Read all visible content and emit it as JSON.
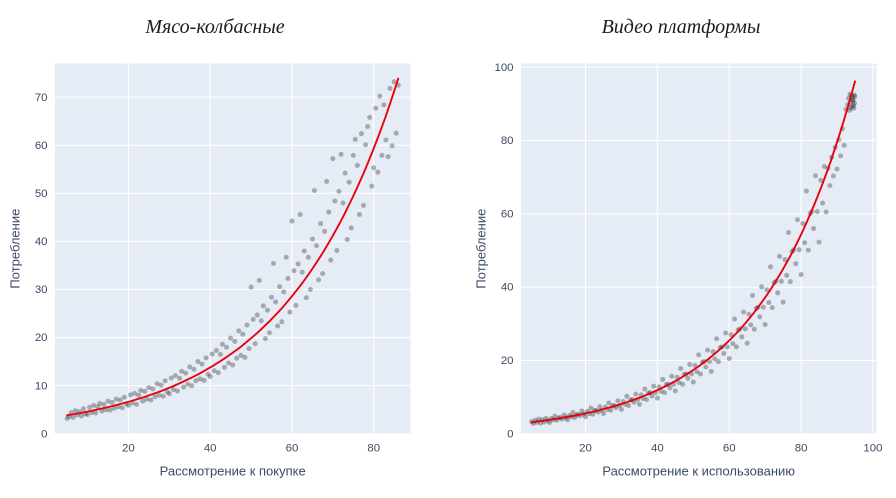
{
  "page": {
    "background": "#ffffff"
  },
  "chart_data": [
    {
      "type": "scatter",
      "title": "Мясо-колбасные",
      "xlabel": "Рассмотрение к покупке",
      "ylabel": "Потребление",
      "plot_bg": "#e5ecf6",
      "grid_color": "#ffffff",
      "tick_color": "#3b4a63",
      "point_color": "rgba(40,40,40,0.35)",
      "fit_color": "#e8000b",
      "x_ticks": [
        20,
        40,
        60,
        80
      ],
      "y_ticks": [
        0,
        10,
        20,
        30,
        40,
        50,
        60,
        70
      ],
      "x_range": [
        2,
        89
      ],
      "y_range": [
        0,
        77
      ],
      "legend": "none",
      "grid": true,
      "fit": {
        "type": "exponential",
        "a": 3.2,
        "b": 0.0365,
        "x_min": 5,
        "x_max": 86
      },
      "points": [
        [
          5,
          3.2
        ],
        [
          5.5,
          3.6
        ],
        [
          6,
          4.4
        ],
        [
          6.5,
          3.4
        ],
        [
          7,
          4.8
        ],
        [
          7.5,
          3.9
        ],
        [
          8,
          4.6
        ],
        [
          8.5,
          3.7
        ],
        [
          9,
          5.2
        ],
        [
          9.5,
          4.1
        ],
        [
          10,
          4.0
        ],
        [
          10.5,
          5.5
        ],
        [
          11,
          4.4
        ],
        [
          11.5,
          5.9
        ],
        [
          12,
          4.3
        ],
        [
          12.5,
          5.6
        ],
        [
          13,
          6.3
        ],
        [
          13.5,
          4.7
        ],
        [
          14,
          6.1
        ],
        [
          14.5,
          5.0
        ],
        [
          15,
          6.8
        ],
        [
          15.5,
          4.9
        ],
        [
          16,
          6.5
        ],
        [
          16.5,
          5.3
        ],
        [
          17,
          7.2
        ],
        [
          17.5,
          5.6
        ],
        [
          18,
          7.0
        ],
        [
          18.5,
          5.4
        ],
        [
          19,
          7.6
        ],
        [
          19.5,
          6.2
        ],
        [
          20,
          5.9
        ],
        [
          20.5,
          8.1
        ],
        [
          21,
          6.4
        ],
        [
          21.5,
          8.4
        ],
        [
          22,
          6.1
        ],
        [
          22.5,
          8.0
        ],
        [
          23,
          9.0
        ],
        [
          23.5,
          6.8
        ],
        [
          24,
          8.8
        ],
        [
          24.5,
          7.2
        ],
        [
          25,
          9.6
        ],
        [
          25.5,
          7.0
        ],
        [
          26,
          9.3
        ],
        [
          26.5,
          7.7
        ],
        [
          27,
          10.4
        ],
        [
          27.5,
          8.0
        ],
        [
          28,
          10.1
        ],
        [
          28.5,
          7.8
        ],
        [
          29,
          11.0
        ],
        [
          29.5,
          8.7
        ],
        [
          30,
          8.3
        ],
        [
          30.5,
          11.6
        ],
        [
          31,
          9.2
        ],
        [
          31.5,
          12.1
        ],
        [
          32,
          8.9
        ],
        [
          32.5,
          11.5
        ],
        [
          33,
          13.0
        ],
        [
          33.5,
          9.7
        ],
        [
          34,
          12.6
        ],
        [
          34.5,
          10.3
        ],
        [
          35,
          13.9
        ],
        [
          35.5,
          10.0
        ],
        [
          36,
          13.4
        ],
        [
          36.5,
          11.0
        ],
        [
          37,
          15.0
        ],
        [
          37.5,
          11.4
        ],
        [
          38,
          14.5
        ],
        [
          38.5,
          11.1
        ],
        [
          39,
          15.8
        ],
        [
          39.5,
          12.4
        ],
        [
          40,
          11.9
        ],
        [
          40.5,
          16.6
        ],
        [
          41,
          13.1
        ],
        [
          41.5,
          17.3
        ],
        [
          42,
          12.7
        ],
        [
          42.5,
          16.5
        ],
        [
          43,
          18.6
        ],
        [
          43.5,
          13.8
        ],
        [
          44,
          18.0
        ],
        [
          44.5,
          14.7
        ],
        [
          45,
          19.9
        ],
        [
          45.5,
          14.3
        ],
        [
          46,
          19.2
        ],
        [
          46.5,
          15.7
        ],
        [
          47,
          21.4
        ],
        [
          47.5,
          16.3
        ],
        [
          48,
          20.7
        ],
        [
          48.5,
          15.9
        ],
        [
          49,
          22.6
        ],
        [
          49.5,
          17.7
        ],
        [
          50,
          30.5
        ],
        [
          50.5,
          23.8
        ],
        [
          51,
          18.7
        ],
        [
          51.5,
          24.7
        ],
        [
          52,
          31.9
        ],
        [
          52.5,
          23.5
        ],
        [
          53,
          26.6
        ],
        [
          53.5,
          19.8
        ],
        [
          54,
          25.7
        ],
        [
          54.5,
          21.0
        ],
        [
          55,
          28.4
        ],
        [
          55.5,
          35.4
        ],
        [
          56,
          27.4
        ],
        [
          56.5,
          22.4
        ],
        [
          57,
          30.6
        ],
        [
          57.5,
          23.3
        ],
        [
          58,
          29.5
        ],
        [
          58.6,
          36.7
        ],
        [
          59,
          32.3
        ],
        [
          59.5,
          25.3
        ],
        [
          60,
          44.2
        ],
        [
          60.5,
          33.9
        ],
        [
          61,
          26.7
        ],
        [
          61.5,
          35.3
        ],
        [
          62,
          45.6
        ],
        [
          62.5,
          33.6
        ],
        [
          63,
          38.0
        ],
        [
          63.5,
          28.3
        ],
        [
          64,
          36.7
        ],
        [
          64.5,
          30.0
        ],
        [
          65,
          40.5
        ],
        [
          65.5,
          50.6
        ],
        [
          66,
          39.1
        ],
        [
          66.5,
          32.0
        ],
        [
          67,
          43.7
        ],
        [
          67.5,
          33.3
        ],
        [
          68,
          42.1
        ],
        [
          68.5,
          52.5
        ],
        [
          69,
          46.1
        ],
        [
          69.5,
          36.1
        ],
        [
          70,
          57.2
        ],
        [
          70.5,
          48.4
        ],
        [
          71,
          38.1
        ],
        [
          71.5,
          50.4
        ],
        [
          72,
          58.1
        ],
        [
          72.5,
          48.0
        ],
        [
          73,
          54.2
        ],
        [
          73.5,
          40.4
        ],
        [
          74,
          52.3
        ],
        [
          74.5,
          42.8
        ],
        [
          75,
          57.9
        ],
        [
          75.5,
          61.2
        ],
        [
          76,
          55.8
        ],
        [
          76.5,
          45.6
        ],
        [
          77,
          62.4
        ],
        [
          77.5,
          47.5
        ],
        [
          78,
          60.1
        ],
        [
          78.5,
          63.9
        ],
        [
          79,
          65.8
        ],
        [
          79.5,
          51.5
        ],
        [
          80,
          55.3
        ],
        [
          80.5,
          67.7
        ],
        [
          81,
          54.4
        ],
        [
          81.5,
          70.2
        ],
        [
          82,
          57.9
        ],
        [
          82.5,
          68.4
        ],
        [
          83,
          61.1
        ],
        [
          83.5,
          57.6
        ],
        [
          84,
          71.8
        ],
        [
          84.5,
          59.9
        ],
        [
          85,
          73.2
        ],
        [
          85.5,
          62.5
        ],
        [
          86,
          72.5
        ]
      ]
    },
    {
      "type": "scatter",
      "title": "Видео платформы",
      "xlabel": "Рассмотрение к использованию",
      "ylabel": "Потребление",
      "plot_bg": "#e5ecf6",
      "grid_color": "#ffffff",
      "tick_color": "#3b4a63",
      "point_color": "rgba(40,40,40,0.35)",
      "fit_color": "#e8000b",
      "x_ticks": [
        20,
        40,
        60,
        80,
        100
      ],
      "y_ticks": [
        0,
        20,
        40,
        60,
        80,
        100
      ],
      "x_range": [
        2,
        101
      ],
      "y_range": [
        0,
        101
      ],
      "legend": "none",
      "grid": true,
      "fit": {
        "type": "exponential",
        "a": 2.6,
        "b": 0.038,
        "x_min": 5,
        "x_max": 95
      },
      "points": [
        [
          5,
          3.3
        ],
        [
          5.5,
          2.8
        ],
        [
          6,
          3.7
        ],
        [
          6.5,
          3.1
        ],
        [
          7,
          4.0
        ],
        [
          7.5,
          2.9
        ],
        [
          8,
          3.8
        ],
        [
          8.5,
          3.2
        ],
        [
          9,
          4.2
        ],
        [
          9.5,
          3.6
        ],
        [
          10,
          3.1
        ],
        [
          10.5,
          4.2
        ],
        [
          11,
          3.8
        ],
        [
          11.5,
          4.8
        ],
        [
          12,
          3.7
        ],
        [
          12.5,
          4.3
        ],
        [
          13,
          4.4
        ],
        [
          13.5,
          4.0
        ],
        [
          14,
          5.1
        ],
        [
          14.5,
          4.4
        ],
        [
          15,
          3.8
        ],
        [
          15.5,
          5.0
        ],
        [
          16,
          4.6
        ],
        [
          16.5,
          5.8
        ],
        [
          17,
          4.4
        ],
        [
          17.5,
          5.2
        ],
        [
          18,
          5.3
        ],
        [
          18.5,
          4.9
        ],
        [
          19,
          6.2
        ],
        [
          19.5,
          5.3
        ],
        [
          20,
          4.6
        ],
        [
          20.5,
          6.1
        ],
        [
          21,
          5.5
        ],
        [
          21.5,
          7.0
        ],
        [
          22,
          5.3
        ],
        [
          22.5,
          6.3
        ],
        [
          23,
          6.4
        ],
        [
          23.5,
          5.9
        ],
        [
          24,
          7.4
        ],
        [
          24.5,
          6.4
        ],
        [
          25,
          5.5
        ],
        [
          25.5,
          7.3
        ],
        [
          26,
          6.6
        ],
        [
          26.5,
          8.4
        ],
        [
          27,
          6.4
        ],
        [
          27.5,
          7.6
        ],
        [
          28,
          7.7
        ],
        [
          28.5,
          7.1
        ],
        [
          29,
          9.0
        ],
        [
          29.5,
          7.7
        ],
        [
          30,
          6.6
        ],
        [
          30.5,
          8.8
        ],
        [
          31,
          8.0
        ],
        [
          31.5,
          10.2
        ],
        [
          32,
          7.7
        ],
        [
          32.5,
          9.2
        ],
        [
          33,
          9.3
        ],
        [
          33.5,
          8.6
        ],
        [
          34,
          10.8
        ],
        [
          34.5,
          9.3
        ],
        [
          35,
          8.0
        ],
        [
          35.5,
          10.6
        ],
        [
          36,
          9.6
        ],
        [
          36.5,
          12.2
        ],
        [
          37,
          9.3
        ],
        [
          37.5,
          11.1
        ],
        [
          38,
          11.2
        ],
        [
          38.5,
          10.3
        ],
        [
          39,
          13.0
        ],
        [
          39.5,
          11.2
        ],
        [
          40,
          9.7
        ],
        [
          40.5,
          12.8
        ],
        [
          41,
          11.6
        ],
        [
          41.5,
          14.8
        ],
        [
          42,
          11.2
        ],
        [
          42.5,
          13.4
        ],
        [
          43,
          13.5
        ],
        [
          43.5,
          12.5
        ],
        [
          44,
          15.7
        ],
        [
          44.5,
          13.5
        ],
        [
          45,
          11.7
        ],
        [
          45.5,
          15.4
        ],
        [
          46,
          14.0
        ],
        [
          46.5,
          17.8
        ],
        [
          47,
          13.5
        ],
        [
          47.5,
          16.2
        ],
        [
          48,
          16.3
        ],
        [
          48.5,
          15.1
        ],
        [
          49,
          18.9
        ],
        [
          49.5,
          16.3
        ],
        [
          50,
          14.1
        ],
        [
          50.5,
          18.6
        ],
        [
          51,
          16.9
        ],
        [
          51.5,
          21.5
        ],
        [
          52,
          16.3
        ],
        [
          52.5,
          19.5
        ],
        [
          53,
          19.7
        ],
        [
          53.5,
          18.2
        ],
        [
          54,
          22.8
        ],
        [
          54.5,
          19.7
        ],
        [
          55,
          17.0
        ],
        [
          55.5,
          22.4
        ],
        [
          56,
          20.4
        ],
        [
          56.5,
          25.9
        ],
        [
          57,
          19.7
        ],
        [
          57.5,
          23.5
        ],
        [
          58,
          23.7
        ],
        [
          58.5,
          21.9
        ],
        [
          59,
          27.5
        ],
        [
          59.5,
          23.7
        ],
        [
          60,
          20.5
        ],
        [
          60.5,
          27.0
        ],
        [
          61,
          24.6
        ],
        [
          61.5,
          31.3
        ],
        [
          62,
          23.7
        ],
        [
          62.5,
          28.3
        ],
        [
          63,
          28.6
        ],
        [
          63.5,
          26.4
        ],
        [
          64,
          33.2
        ],
        [
          64.5,
          28.6
        ],
        [
          65,
          24.7
        ],
        [
          65.5,
          32.6
        ],
        [
          66,
          29.7
        ],
        [
          66.5,
          37.7
        ],
        [
          67,
          28.5
        ],
        [
          67.5,
          34.2
        ],
        [
          68,
          34.5
        ],
        [
          68.5,
          31.9
        ],
        [
          69,
          40.1
        ],
        [
          69.5,
          34.5
        ],
        [
          70,
          29.8
        ],
        [
          70.5,
          39.3
        ],
        [
          71,
          35.8
        ],
        [
          71.5,
          45.5
        ],
        [
          72,
          34.4
        ],
        [
          72.5,
          41.2
        ],
        [
          73,
          41.6
        ],
        [
          73.5,
          38.4
        ],
        [
          74,
          48.4
        ],
        [
          74.5,
          41.6
        ],
        [
          75,
          35.9
        ],
        [
          75.5,
          47.5
        ],
        [
          76,
          43.2
        ],
        [
          76.5,
          54.9
        ],
        [
          77,
          41.5
        ],
        [
          77.5,
          49.7
        ],
        [
          78,
          50.2
        ],
        [
          78.5,
          46.4
        ],
        [
          79,
          58.4
        ],
        [
          79.5,
          50.2
        ],
        [
          80,
          43.4
        ],
        [
          80.5,
          57.3
        ],
        [
          81,
          52.1
        ],
        [
          81.5,
          66.2
        ],
        [
          82,
          50.1
        ],
        [
          82.5,
          60.0
        ],
        [
          83,
          60.6
        ],
        [
          83.5,
          56.0
        ],
        [
          84,
          70.4
        ],
        [
          84.5,
          60.6
        ],
        [
          85,
          52.3
        ],
        [
          85.5,
          69.1
        ],
        [
          86,
          62.9
        ],
        [
          86.5,
          72.9
        ],
        [
          87,
          60.5
        ],
        [
          87.5,
          72.4
        ],
        [
          88,
          67.7
        ],
        [
          88.5,
          75.4
        ],
        [
          89,
          70.3
        ],
        [
          89.5,
          78.1
        ],
        [
          90,
          72.2
        ],
        [
          90.5,
          80.2
        ],
        [
          91,
          75.8
        ],
        [
          91.5,
          83.2
        ],
        [
          92,
          78.7
        ],
        [
          92.5,
          88.5
        ],
        [
          93,
          89.8
        ],
        [
          93.2,
          91.5
        ],
        [
          93.5,
          88.2
        ],
        [
          93.8,
          90.6
        ],
        [
          94,
          92.3
        ],
        [
          94.2,
          89.4
        ],
        [
          94.5,
          91.0
        ],
        [
          94.7,
          88.8
        ],
        [
          95,
          92.0
        ],
        [
          94.9,
          90.2
        ],
        [
          94.3,
          91.8
        ],
        [
          93.6,
          92.6
        ],
        [
          94.6,
          89.6
        ],
        [
          93.9,
          88.9
        ],
        [
          94.4,
          90.9
        ],
        [
          94.8,
          92.4
        ]
      ]
    }
  ]
}
